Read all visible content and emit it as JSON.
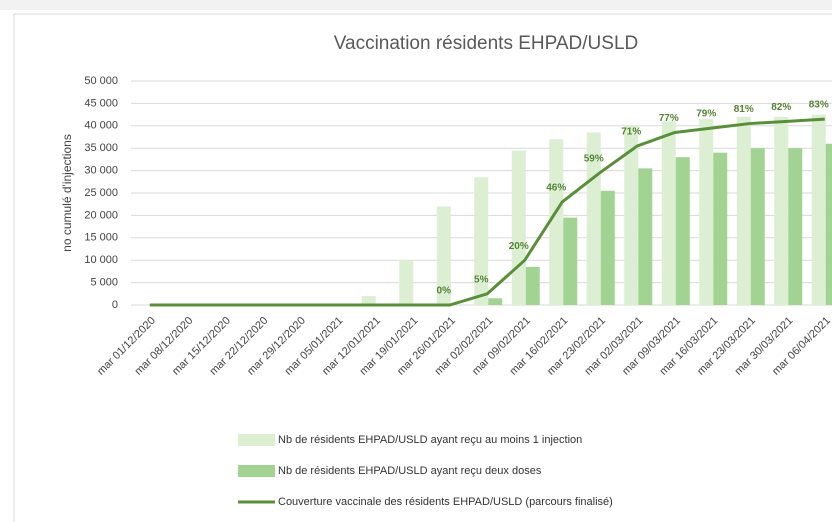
{
  "chart_data": {
    "type": "bar",
    "title": "Vaccination résidents EHPAD/USLD",
    "y_label": "no cumulé d'injections",
    "categories": [
      "mar 01/12/2020",
      "mar 08/12/2020",
      "mar 15/12/2020",
      "mar 22/12/2020",
      "mar 29/12/2020",
      "mar 05/01/2021",
      "mar 12/01/2021",
      "mar 19/01/2021",
      "mar 26/01/2021",
      "mar 02/02/2021",
      "mar 09/02/2021",
      "mar 16/02/2021",
      "mar 23/02/2021",
      "mar 02/03/2021",
      "mar 09/03/2021",
      "mar 16/03/2021",
      "mar 23/03/2021",
      "mar 30/03/2021",
      "mar 06/04/2021"
    ],
    "series": [
      {
        "name": "Nb de résidents EHPAD/USLD ayant reçu au moins 1 injection",
        "color": "#dcefd3",
        "type": "bar",
        "values": [
          0,
          0,
          0,
          0,
          0,
          0,
          2000,
          10000,
          22000,
          28500,
          34500,
          37000,
          38500,
          40000,
          41000,
          41500,
          42000,
          42000,
          42500
        ]
      },
      {
        "name": "Nb de résidents EHPAD/USLD ayant reçu deux doses",
        "color": "#a3d393",
        "type": "bar",
        "values": [
          0,
          0,
          0,
          0,
          0,
          0,
          0,
          0,
          0,
          1500,
          8500,
          19500,
          25500,
          30500,
          33000,
          34000,
          35000,
          35000,
          36000
        ]
      },
      {
        "name": "Couverture vaccinale des résidents EHPAD/USLD (parcours finalisé)",
        "color": "#5a8f3a",
        "type": "line",
        "axis": "y2",
        "values": [
          0,
          0,
          0,
          0,
          0,
          0,
          0,
          0,
          0,
          5,
          20,
          46,
          59,
          71,
          77,
          79,
          81,
          82,
          83
        ],
        "value_labels": [
          null,
          null,
          null,
          null,
          null,
          null,
          null,
          null,
          "0%",
          "5%",
          "20%",
          "46%",
          "59%",
          "71%",
          "77%",
          "79%",
          "81%",
          "82%",
          "83%"
        ]
      }
    ],
    "ylim": [
      0,
      50000
    ],
    "yticks": [
      0,
      {
        "value": 5000,
        "label": "5 000"
      },
      {
        "value": 10000,
        "label": "10 000"
      },
      {
        "value": 15000,
        "label": "15 000"
      },
      {
        "value": 20000,
        "label": "20 000"
      },
      {
        "value": 25000,
        "label": "25 000"
      },
      {
        "value": 30000,
        "label": "30 000"
      },
      {
        "value": 35000,
        "label": "35 000"
      },
      {
        "value": 40000,
        "label": "40 000"
      },
      {
        "value": 45000,
        "label": "45 000"
      },
      {
        "value": 50000,
        "label": "50 000"
      }
    ],
    "y2lim": [
      0,
      100
    ],
    "grid": true,
    "legend": "bottom"
  }
}
